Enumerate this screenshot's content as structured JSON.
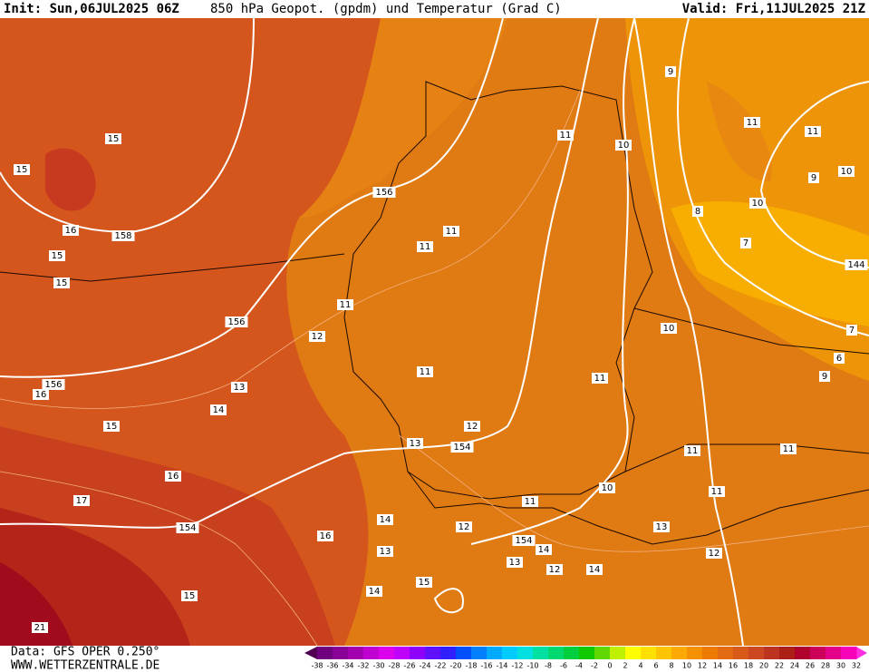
{
  "header": {
    "init": "Init: Sun,06JUL2025 06Z",
    "title": "850 hPa Geopot. (gpdm) und Temperatur (Grad C)",
    "valid": "Valid: Fri,11JUL2025 21Z"
  },
  "contour_labels": [
    15,
    15,
    16,
    158,
    15,
    15,
    156,
    11,
    11,
    11,
    10,
    9,
    11,
    11,
    9,
    10,
    10,
    8,
    7,
    144,
    11,
    156,
    12,
    10,
    7,
    6,
    9,
    156,
    16,
    13,
    11,
    11,
    14,
    15,
    12,
    13,
    154,
    11,
    11,
    16,
    10,
    11,
    17,
    11,
    154,
    14,
    12,
    13,
    16,
    154,
    14,
    13,
    12,
    13,
    12,
    14,
    15,
    14,
    15,
    21
  ],
  "legend": {
    "labels": [
      -38,
      -36,
      -34,
      -32,
      -30,
      -28,
      -26,
      -24,
      -22,
      -20,
      -18,
      -16,
      -14,
      -12,
      -10,
      -8,
      -6,
      -4,
      -2,
      0,
      2,
      4,
      6,
      8,
      10,
      12,
      14,
      16,
      18,
      20,
      22,
      24,
      26,
      28,
      30,
      32
    ],
    "colors": [
      "#500050",
      "#6e007e",
      "#8a0096",
      "#a300b0",
      "#c000d0",
      "#dc00ec",
      "#c000ff",
      "#9000ff",
      "#6010ff",
      "#3020ff",
      "#0050ff",
      "#0080ff",
      "#00aaff",
      "#00ccff",
      "#00e0e0",
      "#00e0a0",
      "#00d870",
      "#00d040",
      "#10c800",
      "#60d800",
      "#c0f000",
      "#ffff00",
      "#ffe000",
      "#ffc400",
      "#ffa800",
      "#f59000",
      "#ec7a00",
      "#e26a10",
      "#d85a1a",
      "#cc4820",
      "#bc3420",
      "#ac2018",
      "#b0002c",
      "#cc0058",
      "#e40088",
      "#f800b8",
      "#ff30e0"
    ]
  },
  "footer": {
    "source": "Data: GFS OPER 0.250°",
    "website": "WWW.WETTERZENTRALE.DE"
  }
}
